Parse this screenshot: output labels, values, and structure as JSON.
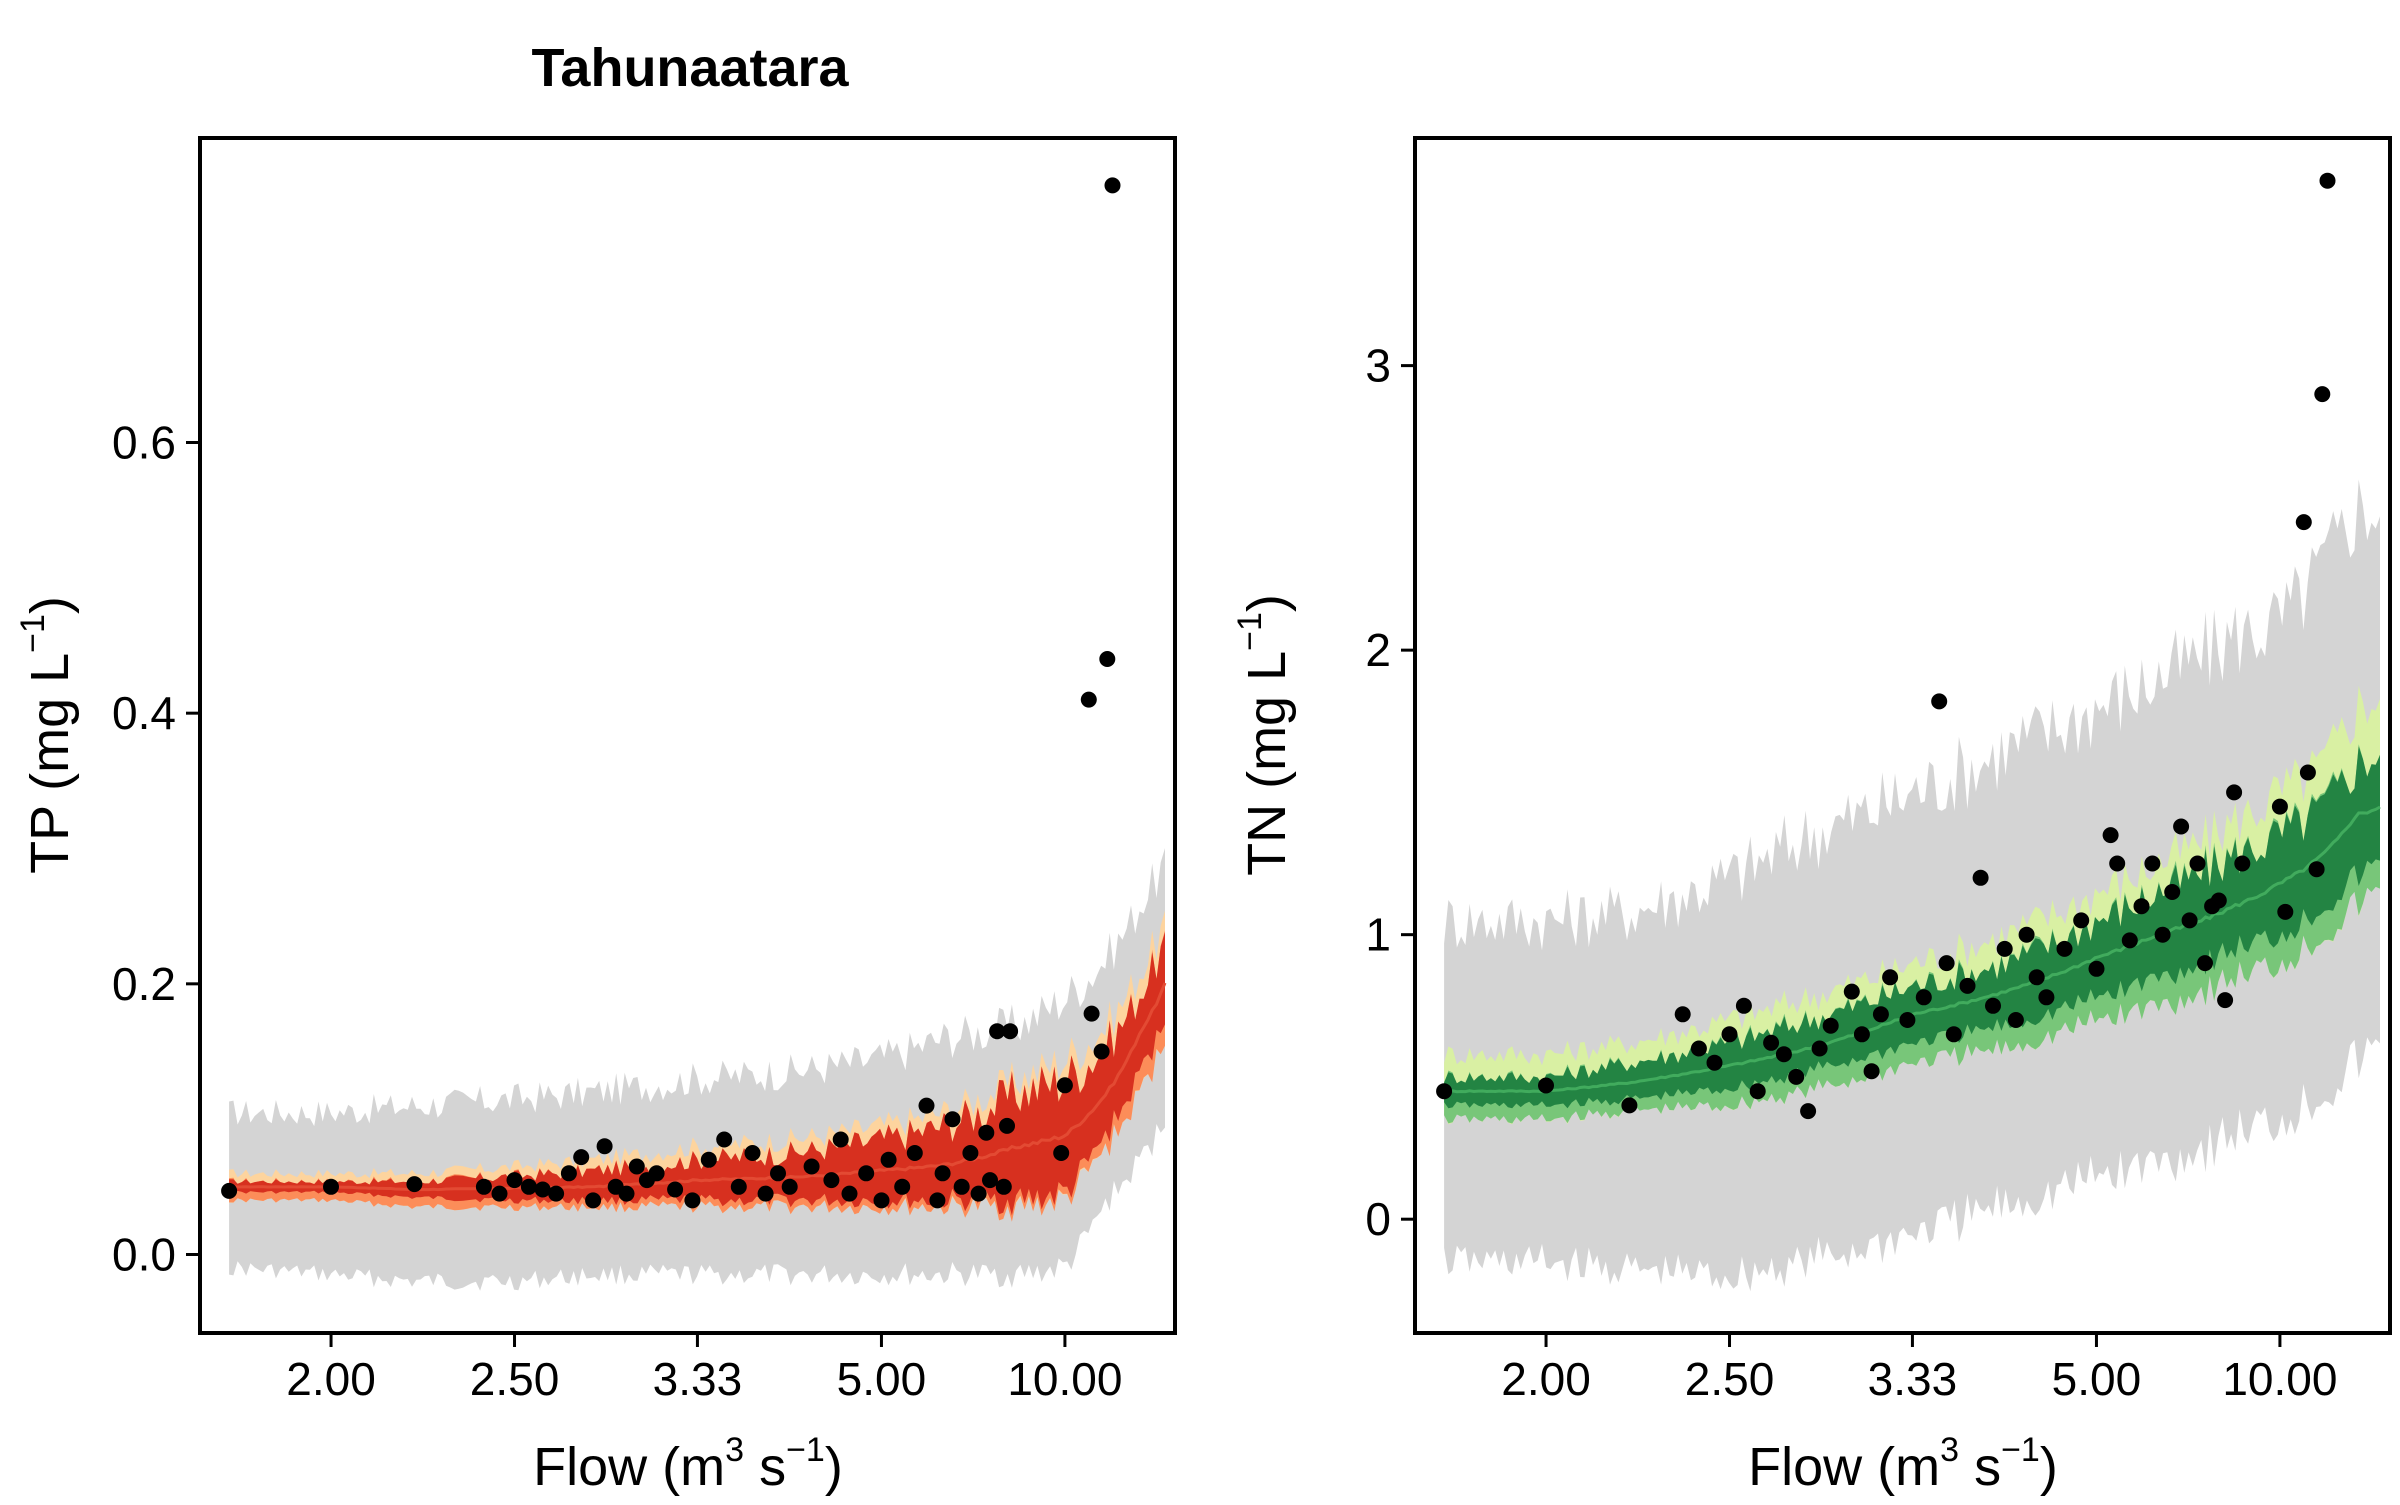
{
  "page_title": "Tahunaatara",
  "colors": {
    "grey_band": "#d4d4d4",
    "tp_outer": "#fdd49e",
    "tp_mid": "#fc8d59",
    "tp_inner": "#d7301f",
    "tp_line": "#e34a33",
    "tn_outer": "#d9f0a3",
    "tn_mid": "#78c679",
    "tn_inner": "#238443",
    "tn_line": "#41ab5d",
    "points": "#000000"
  },
  "chart_data": [
    {
      "type": "scatter",
      "title": "Tahunaatara",
      "xlabel": {
        "base": "Flow  (m",
        "sup1": "3",
        "mid": " s",
        "sup2": "−1",
        "end": ")"
      },
      "ylabel": {
        "base": "TP  (mg L",
        "sup": "−1",
        "end": ")"
      },
      "x_scale": "reciprocal",
      "xlim": [
        1.75,
        25
      ],
      "ylim": [
        -0.058,
        0.825
      ],
      "x_ticks": [
        2.0,
        2.5,
        3.33,
        5.0,
        10.0
      ],
      "x_tick_labels": [
        "2.00",
        "2.50",
        "3.33",
        "5.00",
        "10.00"
      ],
      "y_ticks": [
        0.0,
        0.2,
        0.4,
        0.6
      ],
      "y_tick_labels": [
        "0.0",
        "0.2",
        "0.4",
        "0.6"
      ],
      "band_x": [
        1.8,
        2.0,
        2.2,
        2.5,
        2.8,
        3.33,
        4.0,
        5.0,
        6.0,
        8.0,
        10.0,
        13.0,
        17.0,
        22.0
      ],
      "band_grey": {
        "lower": [
          -0.01,
          -0.015,
          -0.02,
          -0.02,
          -0.015,
          -0.015,
          -0.015,
          -0.015,
          -0.015,
          -0.015,
          -0.01,
          0.04,
          0.07,
          0.1
        ],
        "upper": [
          0.105,
          0.105,
          0.11,
          0.115,
          0.12,
          0.13,
          0.135,
          0.145,
          0.16,
          0.17,
          0.19,
          0.22,
          0.26,
          0.29
        ]
      },
      "band_outer": {
        "lower": [
          0.04,
          0.04,
          0.035,
          0.035,
          0.035,
          0.035,
          0.035,
          0.035,
          0.035,
          0.035,
          0.04,
          0.08,
          0.12,
          0.16
        ],
        "upper": [
          0.06,
          0.06,
          0.06,
          0.065,
          0.07,
          0.08,
          0.085,
          0.095,
          0.105,
          0.13,
          0.145,
          0.17,
          0.21,
          0.245
        ]
      },
      "band_inner": {
        "lower": [
          0.046,
          0.046,
          0.042,
          0.04,
          0.04,
          0.04,
          0.04,
          0.04,
          0.04,
          0.04,
          0.045,
          0.09,
          0.135,
          0.175
        ],
        "upper": [
          0.054,
          0.054,
          0.054,
          0.058,
          0.062,
          0.07,
          0.075,
          0.085,
          0.095,
          0.12,
          0.13,
          0.155,
          0.195,
          0.23
        ]
      },
      "median_line": [
        0.05,
        0.05,
        0.048,
        0.049,
        0.05,
        0.055,
        0.057,
        0.062,
        0.066,
        0.08,
        0.088,
        0.12,
        0.165,
        0.2
      ],
      "points": [
        {
          "x": 1.8,
          "y": 0.047
        },
        {
          "x": 2.0,
          "y": 0.05
        },
        {
          "x": 2.2,
          "y": 0.052
        },
        {
          "x": 2.4,
          "y": 0.05
        },
        {
          "x": 2.45,
          "y": 0.045
        },
        {
          "x": 2.5,
          "y": 0.055
        },
        {
          "x": 2.55,
          "y": 0.05
        },
        {
          "x": 2.6,
          "y": 0.048
        },
        {
          "x": 2.65,
          "y": 0.045
        },
        {
          "x": 2.7,
          "y": 0.06
        },
        {
          "x": 2.75,
          "y": 0.072
        },
        {
          "x": 2.8,
          "y": 0.04
        },
        {
          "x": 2.85,
          "y": 0.08
        },
        {
          "x": 2.9,
          "y": 0.05
        },
        {
          "x": 2.95,
          "y": 0.045
        },
        {
          "x": 3.0,
          "y": 0.065
        },
        {
          "x": 3.05,
          "y": 0.055
        },
        {
          "x": 3.1,
          "y": 0.06
        },
        {
          "x": 3.2,
          "y": 0.048
        },
        {
          "x": 3.3,
          "y": 0.04
        },
        {
          "x": 3.4,
          "y": 0.07
        },
        {
          "x": 3.5,
          "y": 0.085
        },
        {
          "x": 3.6,
          "y": 0.05
        },
        {
          "x": 3.7,
          "y": 0.075
        },
        {
          "x": 3.8,
          "y": 0.045
        },
        {
          "x": 3.9,
          "y": 0.06
        },
        {
          "x": 4.0,
          "y": 0.05
        },
        {
          "x": 4.2,
          "y": 0.065
        },
        {
          "x": 4.4,
          "y": 0.055
        },
        {
          "x": 4.5,
          "y": 0.085
        },
        {
          "x": 4.6,
          "y": 0.045
        },
        {
          "x": 4.8,
          "y": 0.06
        },
        {
          "x": 5.0,
          "y": 0.04
        },
        {
          "x": 5.1,
          "y": 0.07
        },
        {
          "x": 5.3,
          "y": 0.05
        },
        {
          "x": 5.5,
          "y": 0.075
        },
        {
          "x": 5.7,
          "y": 0.11
        },
        {
          "x": 5.9,
          "y": 0.04
        },
        {
          "x": 6.0,
          "y": 0.06
        },
        {
          "x": 6.2,
          "y": 0.1
        },
        {
          "x": 6.4,
          "y": 0.05
        },
        {
          "x": 6.6,
          "y": 0.075
        },
        {
          "x": 6.8,
          "y": 0.045
        },
        {
          "x": 7.0,
          "y": 0.09
        },
        {
          "x": 7.1,
          "y": 0.055
        },
        {
          "x": 7.3,
          "y": 0.165
        },
        {
          "x": 7.5,
          "y": 0.05
        },
        {
          "x": 7.6,
          "y": 0.095
        },
        {
          "x": 7.7,
          "y": 0.165
        },
        {
          "x": 9.8,
          "y": 0.075
        },
        {
          "x": 10.0,
          "y": 0.125
        },
        {
          "x": 11.5,
          "y": 0.41
        },
        {
          "x": 11.7,
          "y": 0.178
        },
        {
          "x": 12.5,
          "y": 0.15
        },
        {
          "x": 13.0,
          "y": 0.44
        },
        {
          "x": 13.5,
          "y": 0.79
        }
      ]
    },
    {
      "type": "scatter",
      "title": "",
      "xlabel": {
        "base": "Flow  (m",
        "sup1": "3",
        "mid": " s",
        "sup2": "−1",
        "end": ")"
      },
      "ylabel": {
        "base": "TN  (mg L",
        "sup": "−1",
        "end": ")"
      },
      "x_scale": "reciprocal",
      "xlim": [
        1.75,
        25
      ],
      "ylim": [
        -0.4,
        3.8
      ],
      "x_ticks": [
        2.0,
        2.5,
        3.33,
        5.0,
        10.0
      ],
      "x_tick_labels": [
        "2.00",
        "2.50",
        "3.33",
        "5.00",
        "10.00"
      ],
      "y_ticks": [
        0,
        1,
        2,
        3
      ],
      "y_tick_labels": [
        "0",
        "1",
        "2",
        "3"
      ],
      "band_x": [
        1.8,
        2.0,
        2.2,
        2.5,
        2.8,
        3.33,
        4.0,
        5.0,
        6.0,
        8.0,
        10.0,
        13.0,
        17.0,
        22.0
      ],
      "band_grey": {
        "lower": [
          -0.15,
          -0.15,
          -0.18,
          -0.2,
          -0.15,
          -0.05,
          0.05,
          0.15,
          0.2,
          0.3,
          0.35,
          0.45,
          0.55,
          0.6
        ],
        "upper": [
          1.05,
          1.05,
          1.08,
          1.2,
          1.35,
          1.5,
          1.65,
          1.8,
          1.9,
          2.05,
          2.1,
          2.3,
          2.5,
          2.5
        ]
      },
      "band_outer": {
        "lower": [
          0.35,
          0.35,
          0.38,
          0.4,
          0.45,
          0.55,
          0.6,
          0.7,
          0.75,
          0.85,
          0.9,
          1.0,
          1.1,
          1.15
        ],
        "upper": [
          0.58,
          0.58,
          0.62,
          0.7,
          0.78,
          0.9,
          1.0,
          1.15,
          1.25,
          1.4,
          1.5,
          1.6,
          1.8,
          1.85
        ]
      },
      "band_inner": {
        "lower": [
          0.4,
          0.4,
          0.42,
          0.46,
          0.52,
          0.62,
          0.68,
          0.78,
          0.85,
          0.95,
          1.0,
          1.1,
          1.2,
          1.25
        ],
        "upper": [
          0.5,
          0.5,
          0.55,
          0.62,
          0.7,
          0.82,
          0.9,
          1.05,
          1.15,
          1.28,
          1.35,
          1.45,
          1.6,
          1.65
        ]
      },
      "median_line": [
        0.45,
        0.45,
        0.48,
        0.54,
        0.6,
        0.72,
        0.8,
        0.92,
        1.0,
        1.1,
        1.18,
        1.28,
        1.42,
        1.45
      ],
      "points": [
        {
          "x": 1.8,
          "y": 0.45
        },
        {
          "x": 2.0,
          "y": 0.47
        },
        {
          "x": 2.2,
          "y": 0.4
        },
        {
          "x": 2.35,
          "y": 0.72
        },
        {
          "x": 2.4,
          "y": 0.6
        },
        {
          "x": 2.45,
          "y": 0.55
        },
        {
          "x": 2.5,
          "y": 0.65
        },
        {
          "x": 2.55,
          "y": 0.75
        },
        {
          "x": 2.6,
          "y": 0.45
        },
        {
          "x": 2.65,
          "y": 0.62
        },
        {
          "x": 2.7,
          "y": 0.58
        },
        {
          "x": 2.75,
          "y": 0.5
        },
        {
          "x": 2.8,
          "y": 0.38
        },
        {
          "x": 2.85,
          "y": 0.6
        },
        {
          "x": 2.9,
          "y": 0.68
        },
        {
          "x": 3.0,
          "y": 0.8
        },
        {
          "x": 3.05,
          "y": 0.65
        },
        {
          "x": 3.1,
          "y": 0.52
        },
        {
          "x": 3.15,
          "y": 0.72
        },
        {
          "x": 3.2,
          "y": 0.85
        },
        {
          "x": 3.3,
          "y": 0.7
        },
        {
          "x": 3.4,
          "y": 0.78
        },
        {
          "x": 3.5,
          "y": 1.82
        },
        {
          "x": 3.55,
          "y": 0.9
        },
        {
          "x": 3.6,
          "y": 0.65
        },
        {
          "x": 3.7,
          "y": 0.82
        },
        {
          "x": 3.8,
          "y": 1.2
        },
        {
          "x": 3.9,
          "y": 0.75
        },
        {
          "x": 4.0,
          "y": 0.95
        },
        {
          "x": 4.1,
          "y": 0.7
        },
        {
          "x": 4.2,
          "y": 1.0
        },
        {
          "x": 4.3,
          "y": 0.85
        },
        {
          "x": 4.4,
          "y": 0.78
        },
        {
          "x": 4.6,
          "y": 0.95
        },
        {
          "x": 4.8,
          "y": 1.05
        },
        {
          "x": 5.0,
          "y": 0.88
        },
        {
          "x": 5.2,
          "y": 1.35
        },
        {
          "x": 5.3,
          "y": 1.25
        },
        {
          "x": 5.5,
          "y": 0.98
        },
        {
          "x": 5.7,
          "y": 1.1
        },
        {
          "x": 5.9,
          "y": 1.25
        },
        {
          "x": 6.1,
          "y": 1.0
        },
        {
          "x": 6.3,
          "y": 1.15
        },
        {
          "x": 6.5,
          "y": 1.38
        },
        {
          "x": 6.7,
          "y": 1.05
        },
        {
          "x": 6.9,
          "y": 1.25
        },
        {
          "x": 7.1,
          "y": 0.9
        },
        {
          "x": 7.3,
          "y": 1.1
        },
        {
          "x": 7.5,
          "y": 1.12
        },
        {
          "x": 7.7,
          "y": 0.77
        },
        {
          "x": 8.0,
          "y": 1.5
        },
        {
          "x": 8.3,
          "y": 1.25
        },
        {
          "x": 10.0,
          "y": 1.45
        },
        {
          "x": 10.3,
          "y": 1.08
        },
        {
          "x": 11.5,
          "y": 2.45
        },
        {
          "x": 11.8,
          "y": 1.57
        },
        {
          "x": 12.5,
          "y": 1.23
        },
        {
          "x": 13.0,
          "y": 2.9
        },
        {
          "x": 13.5,
          "y": 3.65
        }
      ]
    }
  ]
}
